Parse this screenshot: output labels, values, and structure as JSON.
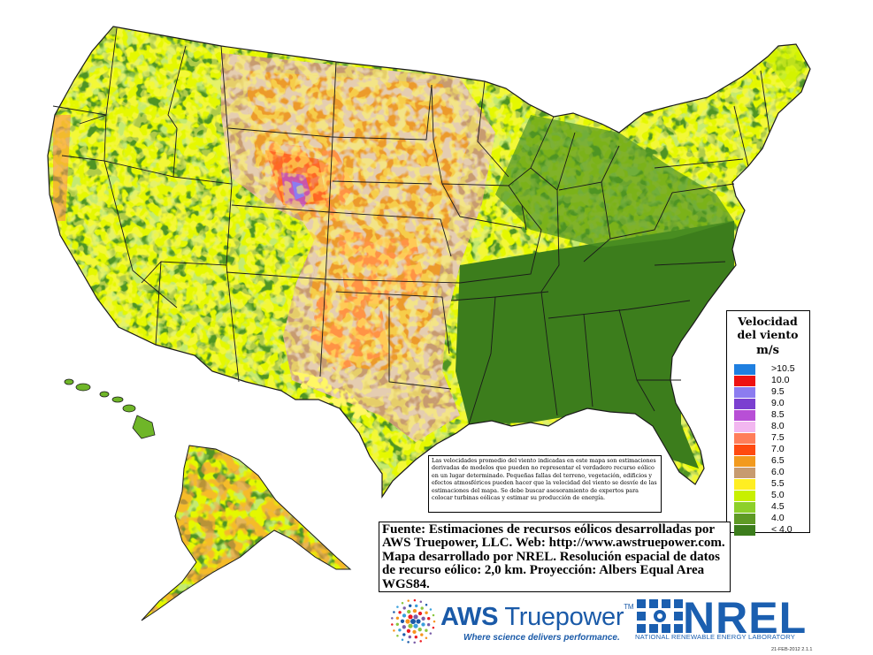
{
  "legend": {
    "title": "Velocidad del viento",
    "unit": "m/s",
    "items": [
      {
        "label": ">10.5",
        "color": "#1f7fe0"
      },
      {
        "label": "10.0",
        "color": "#ee1111"
      },
      {
        "label": "9.5",
        "color": "#8c7cf0"
      },
      {
        "label": "9.0",
        "color": "#7b3fd0"
      },
      {
        "label": "8.5",
        "color": "#b84fd6"
      },
      {
        "label": "8.0",
        "color": "#f2b7f0"
      },
      {
        "label": "7.5",
        "color": "#ff7e5a"
      },
      {
        "label": "7.0",
        "color": "#ff4a10"
      },
      {
        "label": "6.5",
        "color": "#f29a1e"
      },
      {
        "label": "6.0",
        "color": "#c79b70"
      },
      {
        "label": "5.5",
        "color": "#ffee22"
      },
      {
        "label": "5.0",
        "color": "#c8f000"
      },
      {
        "label": "4.5",
        "color": "#8dd02a"
      },
      {
        "label": "4.0",
        "color": "#5e9a25"
      },
      {
        "label": "< 4.0",
        "color": "#3c7d1c"
      }
    ]
  },
  "disclaimer": "Las velocidades promedio del viento indicadas en este mapa son estimaciones derivadas de modelos que pueden no representar el verdadero recurso eólico en un lugar determinado. Pequeñas fallas del terreno, vegetación, edificios y efectos atmosféricos pueden hacer que la velocidad del viento se desvíe de las estimaciones del mapa. Se debe buscar asesoramiento de expertos para colocar turbinas eólicas y estimar su producción de energía.",
  "source": "Fuente: Estimaciones de recursos eólicos desarrolladas por AWS Truepower, LLC. Web: http://www.awstruepower.com. Mapa desarrollado por NREL. Resolución espacial de datos de recurso eólico: 2,0 km. Proyección: Albers Equal Area WGS84.",
  "aws": {
    "name_bold": "AWS",
    "name_rest": " Truepower",
    "tm": "TM",
    "tagline": "Where science delivers performance."
  },
  "nrel": {
    "name": "NREL",
    "subtitle": "NATIONAL RENEWABLE ENERGY LABORATORY"
  },
  "date_stamp": "21-FEB-2012 2.1.1",
  "map_colors": {
    "outline": "#1a1a1a",
    "base": "#4f9424"
  }
}
